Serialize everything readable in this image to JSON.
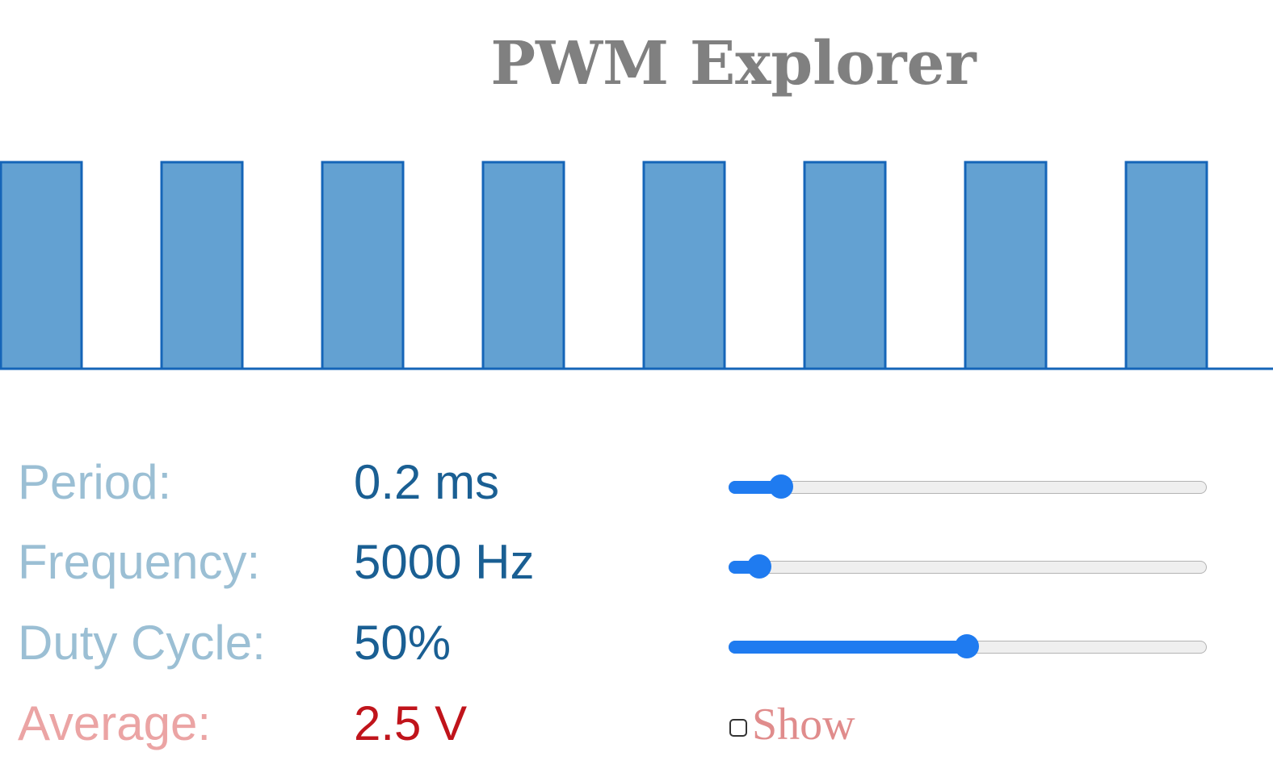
{
  "app": {
    "title": "PWM Explorer"
  },
  "waveform": {
    "duty_cycle_fraction": 0.5,
    "pulse_count_visible": 8,
    "fill_color": "#63a1d2",
    "stroke_color": "#1565b8"
  },
  "controls": {
    "period": {
      "label": "Period:",
      "value": "0.2 ms",
      "slider_fraction": 0.11
    },
    "frequency": {
      "label": "Frequency:",
      "value": "5000 Hz",
      "slider_fraction": 0.065
    },
    "duty_cycle": {
      "label": "Duty Cycle:",
      "value": "50%",
      "slider_fraction": 0.5
    },
    "average": {
      "label": "Average:",
      "value": "2.5 V"
    },
    "show": {
      "label": "Show",
      "checked": false
    }
  },
  "colors": {
    "title": "#808080",
    "label": "#9bbfd4",
    "value": "#1a5f93",
    "average_label": "#eba4a4",
    "average_value": "#c0141b",
    "slider_accent": "#1f7bf0"
  }
}
